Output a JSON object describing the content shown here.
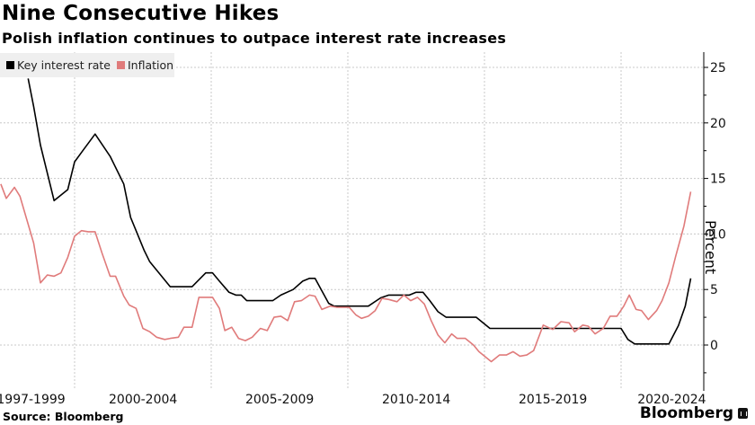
{
  "chart_data": {
    "type": "line",
    "title": "Nine Consecutive Hikes",
    "subtitle": "Polish inflation continues to outpace interest rate increases",
    "xlabel": "",
    "ylabel": "Percent",
    "ylim": [
      -2.5,
      26
    ],
    "xlim": [
      1997.3,
      2022.7
    ],
    "yticks": [
      0,
      5,
      10,
      15,
      20,
      25
    ],
    "y_tick_labels": [
      "0",
      "5",
      "10",
      "15",
      "20",
      "25"
    ],
    "x_period_boundaries": [
      2000,
      2005,
      2010,
      2015,
      2020
    ],
    "x_tick_labels": [
      "1997-1999",
      "2000-2004",
      "2005-2009",
      "2010-2014",
      "2015-2019",
      "2020-2024"
    ],
    "grid": true,
    "legend_position": "top-left",
    "source": "Source: Bloomberg",
    "brand": "Bloomberg",
    "series": [
      {
        "name": "Key interest rate",
        "color": "#000000",
        "points": [
          [
            1998.3,
            24.0
          ],
          [
            1998.5,
            21.5
          ],
          [
            1998.75,
            18.0
          ],
          [
            1999.25,
            13.0
          ],
          [
            1999.75,
            14.0
          ],
          [
            2000.0,
            16.5
          ],
          [
            2000.3,
            17.5
          ],
          [
            2000.75,
            19.0
          ],
          [
            2001.3,
            17.0
          ],
          [
            2001.6,
            15.5
          ],
          [
            2001.8,
            14.5
          ],
          [
            2002.05,
            11.5
          ],
          [
            2002.55,
            8.5
          ],
          [
            2002.75,
            7.5
          ],
          [
            2003.5,
            5.25
          ],
          [
            2004.3,
            5.25
          ],
          [
            2004.8,
            6.5
          ],
          [
            2005.05,
            6.5
          ],
          [
            2005.3,
            5.75
          ],
          [
            2005.65,
            4.75
          ],
          [
            2005.9,
            4.5
          ],
          [
            2006.1,
            4.5
          ],
          [
            2006.3,
            4.0
          ],
          [
            2007.25,
            4.0
          ],
          [
            2007.55,
            4.5
          ],
          [
            2008.0,
            5.0
          ],
          [
            2008.35,
            5.75
          ],
          [
            2008.6,
            6.0
          ],
          [
            2008.8,
            6.0
          ],
          [
            2009.3,
            3.75
          ],
          [
            2009.5,
            3.5
          ],
          [
            2010.75,
            3.5
          ],
          [
            2011.2,
            4.25
          ],
          [
            2011.5,
            4.5
          ],
          [
            2012.25,
            4.5
          ],
          [
            2012.5,
            4.75
          ],
          [
            2012.75,
            4.75
          ],
          [
            2013.0,
            4.0
          ],
          [
            2013.3,
            3.0
          ],
          [
            2013.6,
            2.5
          ],
          [
            2014.7,
            2.5
          ],
          [
            2015.2,
            1.5
          ],
          [
            2020.0,
            1.5
          ],
          [
            2020.25,
            0.5
          ],
          [
            2020.5,
            0.1
          ],
          [
            2021.75,
            0.1
          ],
          [
            2022.1,
            1.75
          ],
          [
            2022.35,
            3.5
          ],
          [
            2022.55,
            6.0
          ]
        ]
      },
      {
        "name": "Inflation",
        "color": "#e07b7b",
        "points": [
          [
            1997.3,
            14.5
          ],
          [
            1997.5,
            13.2
          ],
          [
            1997.8,
            14.2
          ],
          [
            1998.0,
            13.4
          ],
          [
            1998.5,
            9.2
          ],
          [
            1998.75,
            5.6
          ],
          [
            1999.0,
            6.3
          ],
          [
            1999.25,
            6.2
          ],
          [
            1999.5,
            6.5
          ],
          [
            1999.75,
            7.9
          ],
          [
            2000.0,
            9.8
          ],
          [
            2000.25,
            10.3
          ],
          [
            2000.5,
            10.2
          ],
          [
            2000.75,
            10.2
          ],
          [
            2001.0,
            8.3
          ],
          [
            2001.3,
            6.2
          ],
          [
            2001.5,
            6.2
          ],
          [
            2001.8,
            4.4
          ],
          [
            2002.0,
            3.6
          ],
          [
            2002.25,
            3.3
          ],
          [
            2002.5,
            1.5
          ],
          [
            2002.75,
            1.2
          ],
          [
            2003.0,
            0.7
          ],
          [
            2003.3,
            0.5
          ],
          [
            2003.5,
            0.6
          ],
          [
            2003.8,
            0.7
          ],
          [
            2004.0,
            1.6
          ],
          [
            2004.3,
            1.6
          ],
          [
            2004.55,
            4.3
          ],
          [
            2005.05,
            4.3
          ],
          [
            2005.3,
            3.3
          ],
          [
            2005.5,
            1.3
          ],
          [
            2005.75,
            1.6
          ],
          [
            2006.0,
            0.6
          ],
          [
            2006.25,
            0.4
          ],
          [
            2006.5,
            0.7
          ],
          [
            2006.8,
            1.5
          ],
          [
            2007.05,
            1.3
          ],
          [
            2007.3,
            2.5
          ],
          [
            2007.55,
            2.6
          ],
          [
            2007.8,
            2.2
          ],
          [
            2008.05,
            3.9
          ],
          [
            2008.3,
            4.0
          ],
          [
            2008.6,
            4.5
          ],
          [
            2008.8,
            4.4
          ],
          [
            2009.05,
            3.2
          ],
          [
            2009.35,
            3.5
          ],
          [
            2009.6,
            3.4
          ],
          [
            2010.05,
            3.4
          ],
          [
            2010.3,
            2.7
          ],
          [
            2010.5,
            2.4
          ],
          [
            2010.75,
            2.6
          ],
          [
            2011.0,
            3.1
          ],
          [
            2011.25,
            4.2
          ],
          [
            2011.5,
            4.1
          ],
          [
            2011.8,
            3.9
          ],
          [
            2012.05,
            4.5
          ],
          [
            2012.3,
            4.0
          ],
          [
            2012.55,
            4.3
          ],
          [
            2012.8,
            3.7
          ],
          [
            2013.05,
            2.2
          ],
          [
            2013.3,
            0.9
          ],
          [
            2013.55,
            0.2
          ],
          [
            2013.8,
            1.0
          ],
          [
            2014.0,
            0.6
          ],
          [
            2014.3,
            0.6
          ],
          [
            2014.6,
            0.0
          ],
          [
            2014.8,
            -0.6
          ],
          [
            2015.25,
            -1.5
          ],
          [
            2015.55,
            -0.9
          ],
          [
            2015.8,
            -0.9
          ],
          [
            2016.05,
            -0.6
          ],
          [
            2016.3,
            -1.0
          ],
          [
            2016.55,
            -0.9
          ],
          [
            2016.8,
            -0.5
          ],
          [
            2017.15,
            1.8
          ],
          [
            2017.5,
            1.4
          ],
          [
            2017.8,
            2.1
          ],
          [
            2018.1,
            2.0
          ],
          [
            2018.3,
            1.2
          ],
          [
            2018.6,
            1.8
          ],
          [
            2018.8,
            1.7
          ],
          [
            2019.05,
            1.0
          ],
          [
            2019.35,
            1.5
          ],
          [
            2019.6,
            2.6
          ],
          [
            2019.85,
            2.6
          ],
          [
            2020.1,
            3.5
          ],
          [
            2020.3,
            4.5
          ],
          [
            2020.55,
            3.2
          ],
          [
            2020.75,
            3.1
          ],
          [
            2021.0,
            2.3
          ],
          [
            2021.3,
            3.1
          ],
          [
            2021.5,
            4.0
          ],
          [
            2021.75,
            5.6
          ],
          [
            2022.0,
            8.0
          ],
          [
            2022.3,
            10.7
          ],
          [
            2022.55,
            13.8
          ]
        ]
      }
    ]
  }
}
